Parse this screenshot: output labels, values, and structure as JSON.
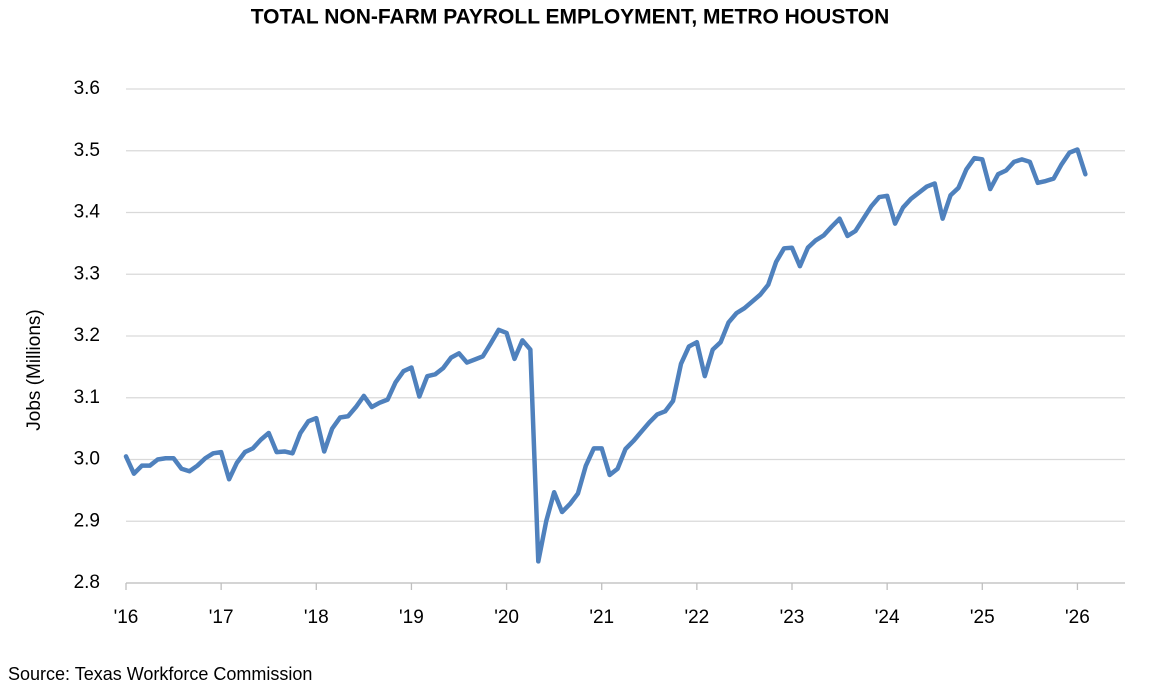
{
  "chart_data": {
    "type": "line",
    "title": "TOTAL NON-FARM PAYROLL EMPLOYMENT, METRO HOUSTON",
    "y_label": "Jobs (Millions)",
    "source": "Source: Texas Workforce Commission",
    "series": [
      {
        "name": "Total non-farm payroll employment",
        "color": "#4f81bd",
        "values": [
          3.005,
          2.977,
          2.99,
          2.99,
          3.0,
          3.002,
          3.002,
          2.985,
          2.981,
          2.99,
          3.002,
          3.01,
          3.012,
          2.968,
          2.995,
          3.012,
          3.018,
          3.032,
          3.043,
          3.012,
          3.013,
          3.01,
          3.043,
          3.062,
          3.067,
          3.013,
          3.05,
          3.068,
          3.07,
          3.085,
          3.103,
          3.085,
          3.092,
          3.097,
          3.125,
          3.143,
          3.149,
          3.102,
          3.135,
          3.138,
          3.148,
          3.165,
          3.172,
          3.157,
          3.162,
          3.167,
          3.188,
          3.21,
          3.205,
          3.163,
          3.193,
          3.178,
          2.835,
          2.9,
          2.947,
          2.915,
          2.928,
          2.945,
          2.99,
          3.018,
          3.018,
          2.975,
          2.985,
          3.017,
          3.03,
          3.045,
          3.06,
          3.073,
          3.078,
          3.095,
          3.155,
          3.183,
          3.19,
          3.135,
          3.178,
          3.19,
          3.222,
          3.237,
          3.245,
          3.256,
          3.267,
          3.283,
          3.32,
          3.342,
          3.343,
          3.313,
          3.343,
          3.355,
          3.363,
          3.377,
          3.39,
          3.362,
          3.37,
          3.39,
          3.41,
          3.425,
          3.427,
          3.382,
          3.408,
          3.422,
          3.432,
          3.442,
          3.447,
          3.39,
          3.428,
          3.44,
          3.47,
          3.488,
          3.486,
          3.438,
          3.462,
          3.468,
          3.482,
          3.486,
          3.482,
          3.448,
          3.451,
          3.455,
          3.478,
          3.497,
          3.502,
          3.462
        ]
      }
    ],
    "xlim": [
      0,
      126
    ],
    "xticks": [
      {
        "value": 0,
        "label": "'16"
      },
      {
        "value": 12,
        "label": "'17"
      },
      {
        "value": 24,
        "label": "'18"
      },
      {
        "value": 36,
        "label": "'19"
      },
      {
        "value": 48,
        "label": "'20"
      },
      {
        "value": 60,
        "label": "'21"
      },
      {
        "value": 72,
        "label": "'22"
      },
      {
        "value": 84,
        "label": "'23"
      },
      {
        "value": 96,
        "label": "'24"
      },
      {
        "value": 108,
        "label": "'25"
      },
      {
        "value": 120,
        "label": "'26"
      }
    ],
    "ylim": [
      2.8,
      3.6
    ],
    "yticks": [
      2.8,
      2.9,
      {
        "value": 3,
        "label": "3.0"
      },
      3.1,
      3.2,
      3.3,
      3.4,
      3.5,
      3.6
    ],
    "grid": true
  }
}
